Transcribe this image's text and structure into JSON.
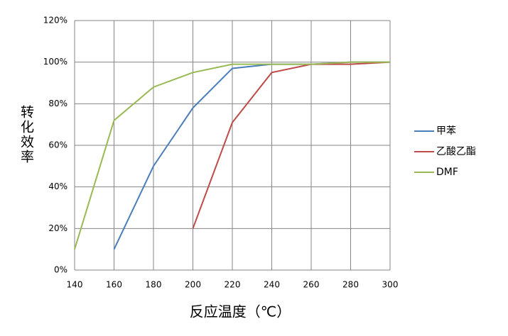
{
  "chart_data": {
    "type": "line",
    "x_label": "反应温度（℃）",
    "y_label": "转化效率",
    "x": [
      140,
      160,
      180,
      200,
      220,
      240,
      260,
      280,
      300
    ],
    "series": [
      {
        "name": "甲苯",
        "color": "#4a7ebb",
        "values": [
          null,
          10,
          50,
          78,
          97,
          99,
          99,
          100,
          100
        ]
      },
      {
        "name": "乙酸乙酯",
        "color": "#be4b48",
        "values": [
          null,
          null,
          null,
          20,
          71,
          95,
          99,
          99,
          100
        ]
      },
      {
        "name": "DMF",
        "color": "#98b954",
        "values": [
          10,
          72,
          88,
          95,
          99,
          99,
          99,
          100,
          100
        ]
      }
    ],
    "xlim": [
      140,
      300
    ],
    "xticks": [
      140,
      160,
      180,
      200,
      220,
      240,
      260,
      280,
      300
    ],
    "ylim": [
      0,
      120
    ],
    "yticks": [
      {
        "value": 0,
        "label": "0%"
      },
      {
        "value": 20,
        "label": "20%"
      },
      {
        "value": 40,
        "label": "40%"
      },
      {
        "value": 60,
        "label": "60%"
      },
      {
        "value": 80,
        "label": "80%"
      },
      {
        "value": 100,
        "label": "100%"
      },
      {
        "value": 120,
        "label": "120%"
      }
    ],
    "grid": true,
    "legend": "right"
  }
}
